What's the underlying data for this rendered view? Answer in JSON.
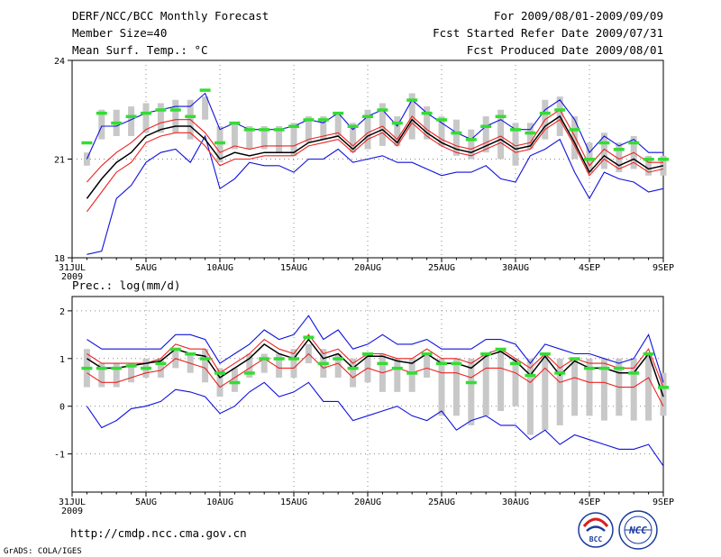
{
  "header": {
    "title": "DERF/NCC/BCC Monthly Forecast",
    "member": "Member Size=40",
    "variable": "Mean Surf. Temp.: °C",
    "period": "For 2009/08/01-2009/09/09",
    "start": "Fcst Started Refer Date 2009/07/31",
    "produced": "Fcst Produced Date 2009/08/01"
  },
  "footer": {
    "url": "http://cmdp.ncc.cma.gov.cn",
    "grads": "GrADS: COLA/IGES",
    "logo_bcc": "BCC",
    "logo_ncc": "NCC"
  },
  "colors": {
    "box": "#c8c8c8",
    "obs": "#33dd33",
    "mean": "#000000",
    "red": "#ee2222",
    "blue": "#1111dd"
  },
  "chart_data": [
    {
      "type": "line",
      "title": "Mean Surf. Temp.: °C",
      "ylim": [
        18,
        24
      ],
      "yticks": [
        18,
        21,
        24
      ],
      "xlim": [
        0,
        40
      ],
      "xtick_positions": [
        0,
        5,
        10,
        15,
        20,
        25,
        30,
        35,
        40
      ],
      "xtick_labels": [
        "31JUL",
        "5AUG",
        "10AUG",
        "15AUG",
        "20AUG",
        "25AUG",
        "30AUG",
        "4SEP",
        "9SEP"
      ],
      "xtick_sublabel": "2009",
      "grid": true,
      "x": [
        1,
        2,
        3,
        4,
        5,
        6,
        7,
        8,
        9,
        10,
        11,
        12,
        13,
        14,
        15,
        16,
        17,
        18,
        19,
        20,
        21,
        22,
        23,
        24,
        25,
        26,
        27,
        28,
        29,
        30,
        31,
        32,
        33,
        34,
        35,
        36,
        37,
        38,
        39,
        40
      ],
      "series": [
        {
          "name": "max",
          "values": [
            21.0,
            22.0,
            22.0,
            22.2,
            22.4,
            22.5,
            22.6,
            22.6,
            23.0,
            21.9,
            22.1,
            21.9,
            21.9,
            21.9,
            22.0,
            22.2,
            22.1,
            22.4,
            21.9,
            22.3,
            22.5,
            22.0,
            22.8,
            22.4,
            22.1,
            21.8,
            21.6,
            22.0,
            22.2,
            21.9,
            21.9,
            22.5,
            22.8,
            22.2,
            21.2,
            21.7,
            21.4,
            21.6,
            21.2,
            21.2
          ]
        },
        {
          "name": "upper",
          "values": [
            20.3,
            20.8,
            21.2,
            21.5,
            21.9,
            22.1,
            22.2,
            22.2,
            21.8,
            21.2,
            21.4,
            21.3,
            21.4,
            21.4,
            21.4,
            21.6,
            21.7,
            21.8,
            21.4,
            21.8,
            22.0,
            21.6,
            22.3,
            21.9,
            21.6,
            21.4,
            21.3,
            21.5,
            21.7,
            21.4,
            21.5,
            22.2,
            22.5,
            21.7,
            20.8,
            21.3,
            21.0,
            21.2,
            20.9,
            20.9
          ]
        },
        {
          "name": "mean",
          "values": [
            19.8,
            20.4,
            20.9,
            21.2,
            21.7,
            21.9,
            22.0,
            22.0,
            21.6,
            21.0,
            21.2,
            21.1,
            21.2,
            21.2,
            21.2,
            21.5,
            21.6,
            21.7,
            21.3,
            21.7,
            21.9,
            21.5,
            22.2,
            21.8,
            21.5,
            21.3,
            21.2,
            21.4,
            21.6,
            21.3,
            21.4,
            22.0,
            22.3,
            21.5,
            20.6,
            21.1,
            20.8,
            21.0,
            20.7,
            20.8
          ]
        },
        {
          "name": "lower",
          "values": [
            19.4,
            20.0,
            20.6,
            20.9,
            21.5,
            21.7,
            21.8,
            21.8,
            21.4,
            20.8,
            21.0,
            21.0,
            21.1,
            21.1,
            21.1,
            21.4,
            21.5,
            21.6,
            21.2,
            21.6,
            21.8,
            21.4,
            22.1,
            21.7,
            21.4,
            21.2,
            21.1,
            21.3,
            21.5,
            21.2,
            21.3,
            21.9,
            22.2,
            21.4,
            20.5,
            21.0,
            20.7,
            20.9,
            20.6,
            20.7
          ]
        },
        {
          "name": "min",
          "values": [
            18.1,
            18.2,
            19.8,
            20.2,
            20.9,
            21.2,
            21.3,
            20.9,
            21.7,
            20.1,
            20.4,
            20.9,
            20.8,
            20.8,
            20.6,
            21.0,
            21.0,
            21.3,
            20.9,
            21.0,
            21.1,
            20.9,
            20.9,
            20.7,
            20.5,
            20.6,
            20.6,
            20.8,
            20.4,
            20.3,
            21.1,
            21.3,
            21.6,
            20.6,
            19.8,
            20.6,
            20.4,
            20.3,
            20.0,
            20.1
          ]
        },
        {
          "name": "observed",
          "values": [
            21.5,
            22.4,
            22.1,
            22.3,
            22.4,
            22.5,
            22.5,
            22.3,
            23.1,
            21.5,
            22.1,
            21.9,
            21.9,
            21.9,
            22.0,
            22.2,
            22.2,
            22.4,
            22.0,
            22.3,
            22.5,
            22.1,
            22.8,
            22.4,
            22.2,
            21.8,
            21.6,
            22.0,
            22.3,
            21.9,
            21.8,
            22.4,
            22.5,
            21.9,
            21.0,
            21.5,
            21.3,
            21.5,
            21.0,
            21.0
          ]
        },
        {
          "name": "box_high",
          "values": [
            21.2,
            22.5,
            22.5,
            22.6,
            22.7,
            22.7,
            22.8,
            22.8,
            22.9,
            22.0,
            22.1,
            22.0,
            22.0,
            22.0,
            22.1,
            22.3,
            22.3,
            22.4,
            22.1,
            22.5,
            22.7,
            22.3,
            23.0,
            22.6,
            22.3,
            22.2,
            21.9,
            22.3,
            22.5,
            22.1,
            22.1,
            22.8,
            22.9,
            22.3,
            21.5,
            21.8,
            21.5,
            21.7,
            21.1,
            21.1
          ]
        },
        {
          "name": "box_low",
          "values": [
            20.8,
            21.6,
            21.7,
            21.7,
            21.8,
            21.8,
            21.8,
            21.6,
            22.2,
            20.9,
            21.3,
            21.3,
            21.3,
            21.2,
            21.1,
            21.5,
            21.6,
            21.7,
            21.2,
            21.3,
            21.4,
            21.4,
            21.6,
            21.6,
            21.4,
            21.1,
            21.0,
            21.2,
            21.0,
            20.8,
            21.3,
            21.6,
            21.7,
            21.0,
            20.6,
            20.7,
            20.6,
            20.7,
            20.5,
            20.5
          ]
        }
      ]
    },
    {
      "type": "line",
      "title": "Prec.: log(mm/d)",
      "ylim": [
        -1.8,
        2.3
      ],
      "yticks": [
        -1,
        0,
        1,
        2
      ],
      "xlim": [
        0,
        40
      ],
      "xtick_positions": [
        0,
        5,
        10,
        15,
        20,
        25,
        30,
        35,
        40
      ],
      "xtick_labels": [
        "31JUL",
        "5AUG",
        "10AUG",
        "15AUG",
        "20AUG",
        "25AUG",
        "30AUG",
        "4SEP",
        "9SEP"
      ],
      "xtick_sublabel": "2009",
      "grid": true,
      "x": [
        1,
        2,
        3,
        4,
        5,
        6,
        7,
        8,
        9,
        10,
        11,
        12,
        13,
        14,
        15,
        16,
        17,
        18,
        19,
        20,
        21,
        22,
        23,
        24,
        25,
        26,
        27,
        28,
        29,
        30,
        31,
        32,
        33,
        34,
        35,
        36,
        37,
        38,
        39,
        40
      ],
      "series": [
        {
          "name": "max",
          "values": [
            1.4,
            1.2,
            1.2,
            1.2,
            1.2,
            1.2,
            1.5,
            1.5,
            1.4,
            0.9,
            1.1,
            1.3,
            1.6,
            1.4,
            1.5,
            1.9,
            1.4,
            1.6,
            1.2,
            1.3,
            1.5,
            1.3,
            1.3,
            1.4,
            1.2,
            1.2,
            1.2,
            1.4,
            1.4,
            1.3,
            0.9,
            1.3,
            1.2,
            1.1,
            1.1,
            1.0,
            0.9,
            1.0,
            1.5,
            0.5
          ]
        },
        {
          "name": "upper",
          "values": [
            1.1,
            0.9,
            0.9,
            0.9,
            0.9,
            1.0,
            1.3,
            1.2,
            1.2,
            0.7,
            0.9,
            1.1,
            1.4,
            1.2,
            1.1,
            1.5,
            1.1,
            1.2,
            0.9,
            1.1,
            1.1,
            1.0,
            1.0,
            1.2,
            1.0,
            1.0,
            0.9,
            1.1,
            1.2,
            1.0,
            0.8,
            1.1,
            0.8,
            1.0,
            0.9,
            0.9,
            0.8,
            0.8,
            1.2,
            0.4
          ]
        },
        {
          "name": "mean",
          "values": [
            1.0,
            0.8,
            0.8,
            0.85,
            0.9,
            0.95,
            1.2,
            1.1,
            1.05,
            0.6,
            0.8,
            1.0,
            1.3,
            1.1,
            1.0,
            1.4,
            1.0,
            1.1,
            0.8,
            1.05,
            1.05,
            0.95,
            0.9,
            1.1,
            0.9,
            0.9,
            0.8,
            1.05,
            1.15,
            0.95,
            0.65,
            1.05,
            0.65,
            0.95,
            0.8,
            0.8,
            0.7,
            0.7,
            1.1,
            0.2
          ]
        },
        {
          "name": "lower",
          "values": [
            0.7,
            0.5,
            0.5,
            0.6,
            0.7,
            0.75,
            1.0,
            0.9,
            0.8,
            0.4,
            0.6,
            0.8,
            1.0,
            0.8,
            0.8,
            1.1,
            0.8,
            0.9,
            0.6,
            0.8,
            0.7,
            0.8,
            0.7,
            0.8,
            0.7,
            0.7,
            0.6,
            0.8,
            0.8,
            0.7,
            0.5,
            0.8,
            0.5,
            0.6,
            0.5,
            0.5,
            0.4,
            0.4,
            0.6,
            0.0
          ]
        },
        {
          "name": "min",
          "values": [
            0.0,
            -0.45,
            -0.3,
            -0.05,
            0.0,
            0.1,
            0.35,
            0.3,
            0.2,
            -0.15,
            0.0,
            0.3,
            0.5,
            0.2,
            0.3,
            0.5,
            0.1,
            0.1,
            -0.3,
            -0.2,
            -0.1,
            0.0,
            -0.2,
            -0.3,
            -0.1,
            -0.5,
            -0.3,
            -0.2,
            -0.4,
            -0.4,
            -0.7,
            -0.5,
            -0.8,
            -0.6,
            -0.7,
            -0.8,
            -0.9,
            -0.9,
            -0.8,
            -1.25
          ]
        },
        {
          "name": "observed",
          "values": [
            0.8,
            0.8,
            0.8,
            0.85,
            0.8,
            0.9,
            1.2,
            1.1,
            1.0,
            0.7,
            0.5,
            0.7,
            1.0,
            1.0,
            1.0,
            1.45,
            0.9,
            1.0,
            0.8,
            1.1,
            0.9,
            0.8,
            0.7,
            1.1,
            0.9,
            0.9,
            0.5,
            1.1,
            1.2,
            0.9,
            0.65,
            1.1,
            0.7,
            1.0,
            0.8,
            0.8,
            0.8,
            0.7,
            1.1,
            0.4
          ]
        },
        {
          "name": "box_high",
          "values": [
            1.2,
            0.9,
            0.9,
            0.9,
            1.0,
            1.0,
            1.2,
            1.1,
            1.2,
            0.8,
            0.8,
            1.1,
            1.1,
            1.1,
            1.2,
            1.3,
            1.2,
            1.1,
            1.0,
            1.1,
            1.1,
            1.0,
            1.0,
            1.1,
            1.0,
            1.0,
            1.0,
            1.1,
            1.2,
            1.0,
            1.0,
            1.1,
            1.0,
            1.0,
            1.0,
            1.0,
            1.0,
            1.0,
            1.1,
            0.7
          ]
        },
        {
          "name": "box_low",
          "values": [
            0.4,
            0.4,
            0.4,
            0.5,
            0.6,
            0.6,
            0.8,
            0.7,
            0.5,
            0.2,
            0.3,
            0.6,
            0.7,
            0.6,
            0.6,
            0.9,
            0.6,
            0.6,
            0.4,
            0.5,
            0.3,
            0.3,
            0.3,
            0.6,
            -0.2,
            -0.2,
            -0.4,
            -0.2,
            -0.1,
            0.0,
            -0.6,
            -0.5,
            -0.4,
            -0.2,
            -0.2,
            -0.3,
            -0.2,
            -0.3,
            -0.3,
            -0.2
          ]
        }
      ]
    }
  ]
}
